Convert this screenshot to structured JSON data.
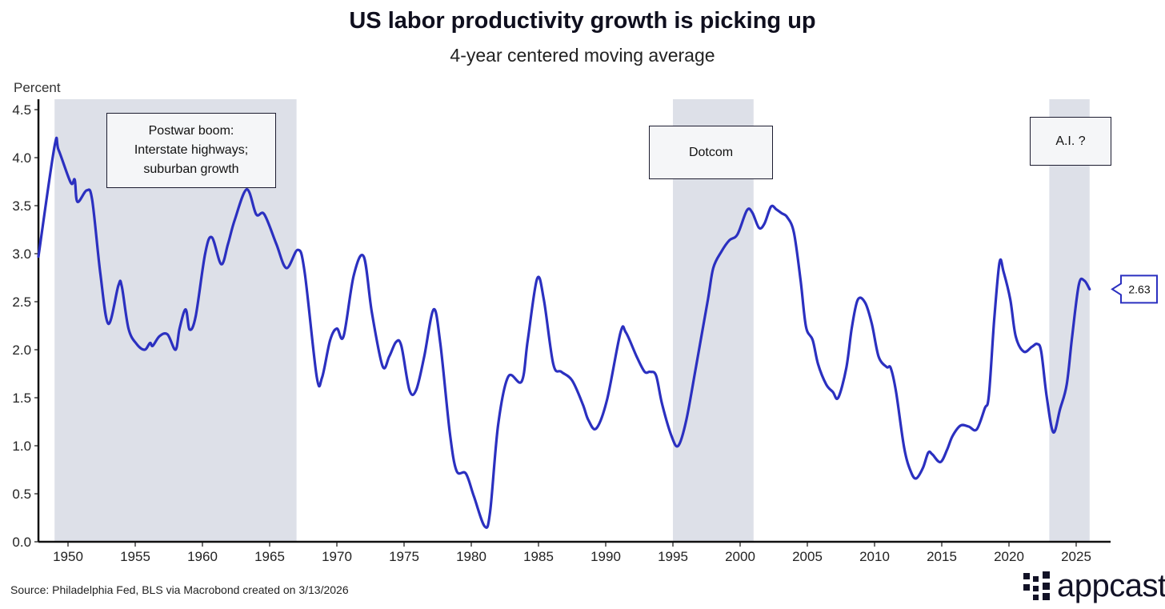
{
  "chart_data": {
    "type": "line",
    "title": "US labor productivity growth is picking up",
    "subtitle": "4-year centered moving average",
    "ylabel": "Percent",
    "xlabel": "",
    "ylim": [
      0,
      4.5
    ],
    "xlim": [
      1947.8,
      2027
    ],
    "yticks": [
      "0.0",
      "0.5",
      "1.0",
      "1.5",
      "2.0",
      "2.5",
      "3.0",
      "3.5",
      "4.0",
      "4.5"
    ],
    "xticks": [
      "1950",
      "1955",
      "1960",
      "1965",
      "1970",
      "1975",
      "1980",
      "1985",
      "1990",
      "1995",
      "2000",
      "2005",
      "2010",
      "2015",
      "2020",
      "2025"
    ],
    "grid": false,
    "line_color": "#2b30c0",
    "shade_color": "#dde0e8",
    "shaded_periods": [
      {
        "start": 1949.0,
        "end": 1967.0,
        "label": "Postwar boom:\nInterstate highways;\nsuburban growth"
      },
      {
        "start": 1995.0,
        "end": 2001.0,
        "label": "Dotcom"
      },
      {
        "start": 2023.0,
        "end": 2026.0,
        "label": "A.I. ?"
      }
    ],
    "last_value_label": "2.63",
    "series": [
      {
        "name": "US labor productivity growth",
        "x": [
          1947.8,
          1949.0,
          1949.3,
          1950.2,
          1950.5,
          1950.7,
          1951.4,
          1951.8,
          1952.4,
          1953.0,
          1953.75,
          1954.0,
          1954.5,
          1955.1,
          1955.7,
          1956.1,
          1956.3,
          1956.8,
          1957.4,
          1958.0,
          1958.3,
          1958.75,
          1959.05,
          1959.5,
          1960.2,
          1960.7,
          1961.4,
          1961.9,
          1962.4,
          1963.3,
          1964.0,
          1964.6,
          1965.5,
          1966.25,
          1967.1,
          1967.6,
          1968.5,
          1968.9,
          1969.5,
          1970.0,
          1970.5,
          1971.25,
          1972.0,
          1972.6,
          1973.4,
          1973.9,
          1974.4,
          1974.8,
          1975.4,
          1975.9,
          1976.5,
          1977.2,
          1977.7,
          1978.4,
          1978.9,
          1979.6,
          1980.2,
          1981.0,
          1981.4,
          1982.0,
          1982.75,
          1983.75,
          1984.2,
          1984.9,
          1985.4,
          1986.1,
          1986.7,
          1987.5,
          1988.3,
          1988.7,
          1989.3,
          1990.1,
          1991.1,
          1991.5,
          1992.3,
          1992.9,
          1993.3,
          1993.75,
          1994.2,
          1994.9,
          1995.4,
          1996.0,
          1996.7,
          1997.6,
          1998.0,
          1998.6,
          1999.2,
          1999.8,
          2000.5,
          2000.9,
          2001.4,
          2001.8,
          2002.3,
          2002.7,
          2003.1,
          2003.5,
          2004.0,
          2004.5,
          2004.9,
          2005.4,
          2005.8,
          2006.4,
          2006.9,
          2007.3,
          2007.9,
          2008.3,
          2008.75,
          2009.3,
          2009.8,
          2010.3,
          2010.9,
          2011.2,
          2011.6,
          2012.2,
          2012.7,
          2013.1,
          2013.6,
          2014.0,
          2014.3,
          2014.9,
          2015.4,
          2015.8,
          2016.4,
          2017.0,
          2017.6,
          2018.2,
          2018.5,
          2018.9,
          2019.3,
          2019.6,
          2020.1,
          2020.5,
          2021.1,
          2021.7,
          2022.1,
          2022.4,
          2022.8,
          2023.3,
          2023.8,
          2024.3,
          2024.7,
          2025.2,
          2025.6,
          2026.0
        ],
        "y": [
          2.97,
          4.12,
          4.08,
          3.74,
          3.77,
          3.54,
          3.66,
          3.56,
          2.8,
          2.27,
          2.67,
          2.66,
          2.22,
          2.06,
          2.0,
          2.07,
          2.04,
          2.14,
          2.16,
          2.0,
          2.22,
          2.42,
          2.21,
          2.35,
          3.0,
          3.17,
          2.89,
          3.1,
          3.35,
          3.67,
          3.41,
          3.41,
          3.1,
          2.85,
          3.04,
          2.81,
          1.72,
          1.71,
          2.1,
          2.22,
          2.14,
          2.77,
          2.97,
          2.39,
          1.83,
          1.93,
          2.08,
          2.04,
          1.58,
          1.58,
          1.93,
          2.42,
          2.06,
          1.14,
          0.74,
          0.71,
          0.47,
          0.16,
          0.31,
          1.22,
          1.72,
          1.67,
          2.1,
          2.74,
          2.52,
          1.85,
          1.77,
          1.68,
          1.43,
          1.27,
          1.18,
          1.48,
          2.18,
          2.18,
          1.93,
          1.77,
          1.77,
          1.73,
          1.43,
          1.1,
          1.0,
          1.27,
          1.81,
          2.52,
          2.85,
          3.02,
          3.14,
          3.2,
          3.45,
          3.43,
          3.27,
          3.31,
          3.49,
          3.46,
          3.42,
          3.38,
          3.22,
          2.72,
          2.24,
          2.1,
          1.85,
          1.64,
          1.56,
          1.5,
          1.81,
          2.22,
          2.52,
          2.49,
          2.27,
          1.93,
          1.82,
          1.81,
          1.56,
          0.98,
          0.73,
          0.66,
          0.77,
          0.93,
          0.91,
          0.83,
          0.96,
          1.1,
          1.21,
          1.2,
          1.17,
          1.39,
          1.52,
          2.31,
          2.91,
          2.81,
          2.52,
          2.14,
          1.98,
          2.03,
          2.06,
          1.98,
          1.52,
          1.14,
          1.38,
          1.64,
          2.14,
          2.68,
          2.72,
          2.63
        ]
      }
    ],
    "source": "Source: Philadelphia Fed, BLS via Macrobond created on 3/13/2026"
  },
  "logo": {
    "text": "appcast"
  }
}
